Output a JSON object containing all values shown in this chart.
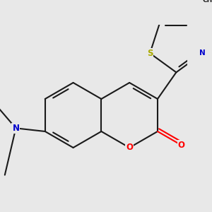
{
  "bg_color": "#e8e8e8",
  "bond_color": "#1a1a1a",
  "bond_width": 1.5,
  "atom_colors": {
    "O": "#ff0000",
    "N": "#0000cc",
    "S": "#aaaa00",
    "C": "#1a1a1a"
  },
  "font_size": 8.5,
  "fig_size": [
    3.0,
    3.0
  ],
  "dpi": 100
}
